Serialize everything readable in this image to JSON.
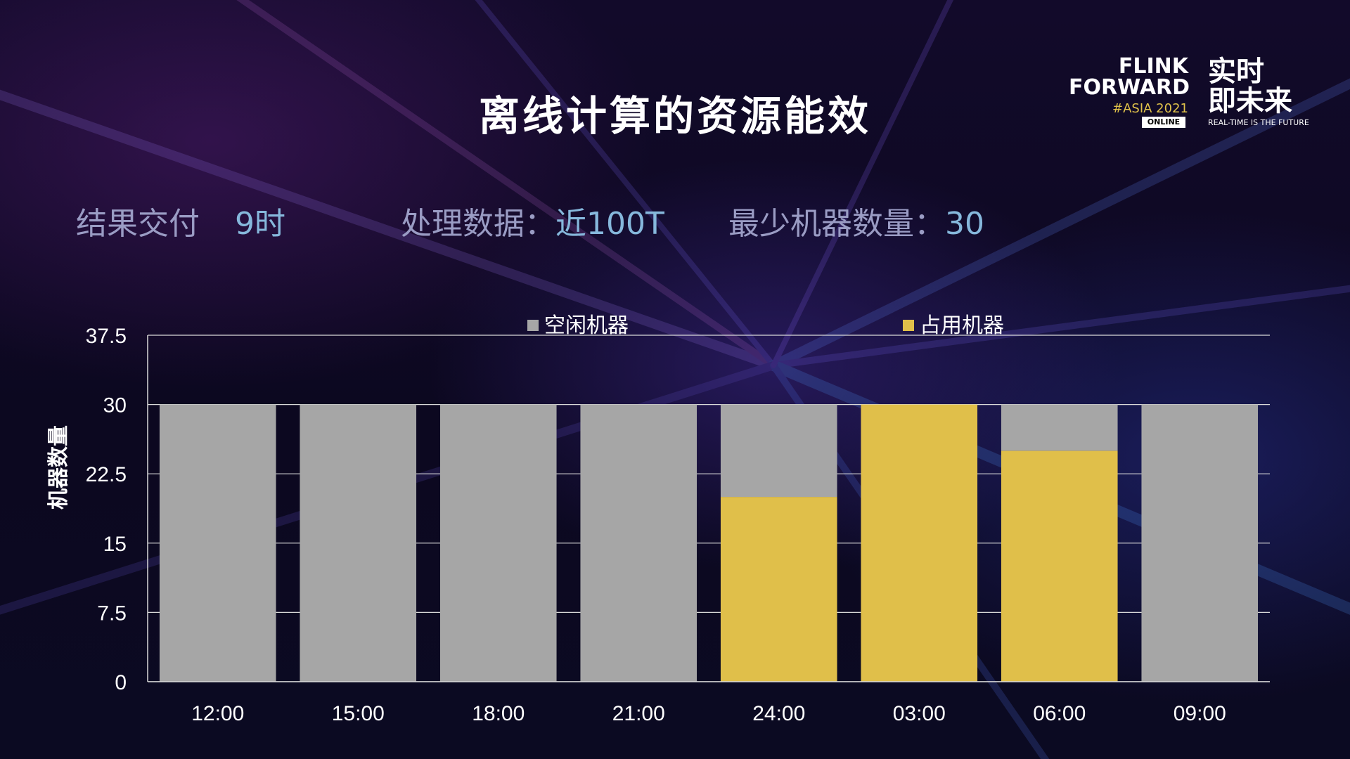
{
  "title": "离线计算的资源能效",
  "logo": {
    "line1": "FLINK",
    "line2": "FORWARD",
    "edition": "#ASIA 2021",
    "badge": "ONLINE",
    "cn_line1": "实时",
    "cn_line2": "即未来",
    "tagline": "REAL-TIME IS THE FUTURE"
  },
  "stats": [
    {
      "label": "结果交付",
      "value": "9时"
    },
    {
      "label": "处理数据：",
      "value": "近100T"
    },
    {
      "label": "最少机器数量：",
      "value": "30"
    }
  ],
  "colors": {
    "idle": "#a6a6a6",
    "used": "#e0bf4a",
    "grid": "#d9d9d9"
  },
  "chart_data": {
    "type": "bar",
    "stacked": true,
    "categories": [
      "12:00",
      "15:00",
      "18:00",
      "21:00",
      "24:00",
      "03:00",
      "06:00",
      "09:00"
    ],
    "series": [
      {
        "name": "占用机器",
        "values": [
          0,
          0,
          0,
          0,
          20,
          30,
          25,
          0
        ]
      },
      {
        "name": "空闲机器",
        "values": [
          30,
          30,
          30,
          30,
          10,
          0,
          5,
          30
        ]
      }
    ],
    "legend_order": [
      "空闲机器",
      "占用机器"
    ],
    "ylabel": "机器数量",
    "ylim": [
      0,
      37.5
    ],
    "yticks": [
      "0",
      "7.5",
      "15",
      "22.5",
      "30",
      "37.5"
    ],
    "grid": true,
    "legend_position": "top"
  }
}
